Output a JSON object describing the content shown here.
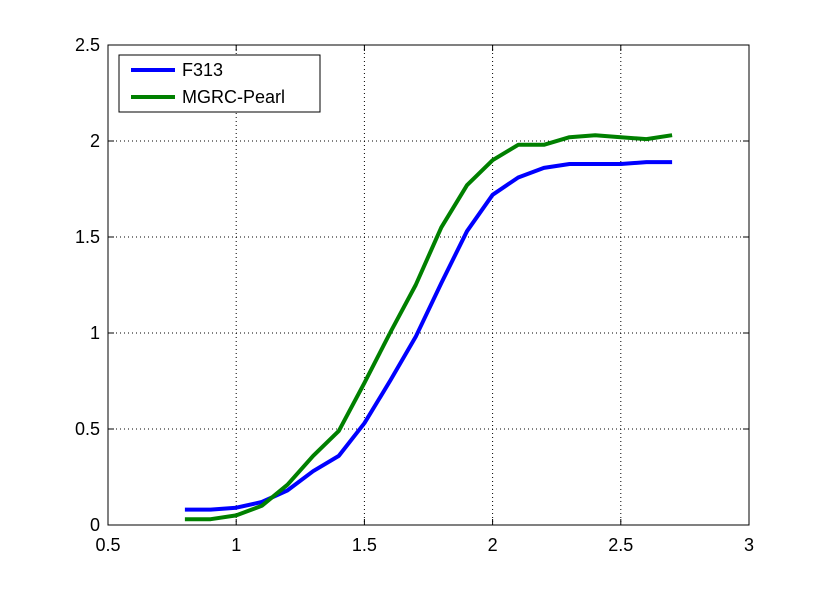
{
  "chart_data": {
    "type": "line",
    "title": "",
    "xlabel": "",
    "ylabel": "",
    "xlim": [
      0.5,
      3
    ],
    "ylim": [
      0,
      2.5
    ],
    "xticks": [
      0.5,
      1,
      1.5,
      2,
      2.5,
      3
    ],
    "yticks": [
      0,
      0.5,
      1,
      1.5,
      2,
      2.5
    ],
    "xtick_labels": [
      "0.5",
      "1",
      "1.5",
      "2",
      "2.5",
      "3"
    ],
    "ytick_labels": [
      "0",
      "0.5",
      "1",
      "1.5",
      "2",
      "2.5"
    ],
    "grid": true,
    "legend_position": "top-left",
    "series": [
      {
        "name": "F313",
        "color": "#0000ff",
        "x": [
          0.8,
          0.9,
          1.0,
          1.1,
          1.2,
          1.3,
          1.4,
          1.5,
          1.6,
          1.7,
          1.8,
          1.9,
          2.0,
          2.1,
          2.2,
          2.3,
          2.4,
          2.5,
          2.6,
          2.7
        ],
        "y": [
          0.08,
          0.08,
          0.09,
          0.12,
          0.18,
          0.28,
          0.36,
          0.53,
          0.75,
          0.98,
          1.26,
          1.53,
          1.72,
          1.81,
          1.86,
          1.88,
          1.88,
          1.88,
          1.89,
          1.89
        ]
      },
      {
        "name": "MGRC-Pearl",
        "color": "#008000",
        "x": [
          0.8,
          0.9,
          1.0,
          1.1,
          1.2,
          1.3,
          1.4,
          1.5,
          1.6,
          1.7,
          1.8,
          1.9,
          2.0,
          2.1,
          2.2,
          2.3,
          2.4,
          2.5,
          2.6,
          2.7
        ],
        "y": [
          0.03,
          0.03,
          0.05,
          0.1,
          0.21,
          0.36,
          0.49,
          0.74,
          1.0,
          1.25,
          1.55,
          1.77,
          1.9,
          1.98,
          1.98,
          2.02,
          2.03,
          2.02,
          2.01,
          2.03
        ]
      }
    ]
  }
}
